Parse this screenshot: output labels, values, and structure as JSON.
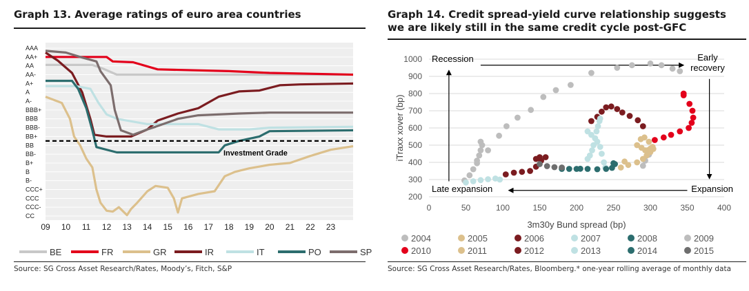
{
  "left": {
    "title": "Graph 13. Average ratings of euro area countries",
    "source": "Source: SG Cross Asset Research/Rates, Moody’s, Fitch, S&P",
    "annotation": "Investment Grade",
    "chart_data": {
      "type": "line",
      "title": "Graph 13. Average ratings of euro area countries",
      "xlabel": "",
      "ylabel": "",
      "x_ticks": [
        "09",
        "10",
        "11",
        "12",
        "13",
        "14",
        "15",
        "16",
        "17",
        "18",
        "19",
        "20",
        "21",
        "22",
        "23"
      ],
      "y_ticks": [
        "AAA",
        "AA+",
        "AA",
        "AA-",
        "A+",
        "A",
        "A-",
        "BBB+",
        "BBB",
        "BBB-",
        "BB+",
        "BB",
        "BB-",
        "B+",
        "B",
        "B-",
        "CCC+",
        "CCC",
        "CCC-",
        "CC"
      ],
      "xlim": [
        2009,
        2024.1
      ],
      "reference_line": {
        "label": "Investment Grade",
        "y": 10.5
      },
      "grid": "horizontal",
      "legend_position": "bottom",
      "series": [
        {
          "name": "BE",
          "color": "#c8c8c8",
          "points": [
            [
              2009,
              1.9
            ],
            [
              2011.3,
              1.9
            ],
            [
              2011.8,
              2.3
            ],
            [
              2012.5,
              3
            ],
            [
              2024.1,
              3
            ]
          ]
        },
        {
          "name": "FR",
          "color": "#e3001b",
          "points": [
            [
              2009,
              1
            ],
            [
              2012.0,
              1
            ],
            [
              2012.3,
              1.5
            ],
            [
              2013.3,
              1.6
            ],
            [
              2014.5,
              2.4
            ],
            [
              2018,
              2.6
            ],
            [
              2020,
              2.8
            ],
            [
              2024.1,
              3
            ]
          ]
        },
        {
          "name": "GR",
          "color": "#dcc08c",
          "points": [
            [
              2009,
              5.5
            ],
            [
              2009.8,
              6.2
            ],
            [
              2010.2,
              8
            ],
            [
              2010.4,
              10
            ],
            [
              2010.7,
              11
            ],
            [
              2011.0,
              12.5
            ],
            [
              2011.3,
              13.5
            ],
            [
              2011.5,
              16
            ],
            [
              2011.7,
              17.5
            ],
            [
              2012.0,
              18.4
            ],
            [
              2012.3,
              18.5
            ],
            [
              2012.6,
              18
            ],
            [
              2013,
              18.9
            ],
            [
              2013.2,
              18.2
            ],
            [
              2013.5,
              17.5
            ],
            [
              2014,
              16.2
            ],
            [
              2014.4,
              15.6
            ],
            [
              2015.0,
              15.8
            ],
            [
              2015.3,
              17
            ],
            [
              2015.5,
              18.6
            ],
            [
              2015.7,
              17
            ],
            [
              2016.5,
              16.5
            ],
            [
              2017.3,
              16.2
            ],
            [
              2017.8,
              14.5
            ],
            [
              2018.3,
              14
            ],
            [
              2019,
              13.6
            ],
            [
              2020,
              13.2
            ],
            [
              2021,
              13
            ],
            [
              2022,
              12.2
            ],
            [
              2023,
              11.5
            ],
            [
              2024.1,
              11.1
            ]
          ]
        },
        {
          "name": "IR",
          "color": "#7b1c20",
          "points": [
            [
              2009,
              0.5
            ],
            [
              2009.6,
              1.4
            ],
            [
              2010.3,
              2.8
            ],
            [
              2010.8,
              5
            ],
            [
              2011.2,
              8
            ],
            [
              2011.4,
              9.8
            ],
            [
              2012,
              10
            ],
            [
              2013.2,
              10
            ],
            [
              2014,
              9.2
            ],
            [
              2014.5,
              8.2
            ],
            [
              2015.5,
              7.4
            ],
            [
              2016.5,
              6.8
            ],
            [
              2017.5,
              5.5
            ],
            [
              2018.5,
              4.9
            ],
            [
              2019.5,
              4.8
            ],
            [
              2020.5,
              4.2
            ],
            [
              2021.5,
              4.1
            ],
            [
              2024.1,
              4
            ]
          ]
        },
        {
          "name": "IT",
          "color": "#bfe1e3",
          "points": [
            [
              2009,
              4.3
            ],
            [
              2010.5,
              4.3
            ],
            [
              2011.2,
              4.6
            ],
            [
              2011.6,
              6.2
            ],
            [
              2012.0,
              7.5
            ],
            [
              2012.5,
              8
            ],
            [
              2014,
              8.6
            ],
            [
              2016.5,
              8.6
            ],
            [
              2017.5,
              9.2
            ],
            [
              2019,
              9.2
            ],
            [
              2020,
              9
            ],
            [
              2024.1,
              8.9
            ]
          ]
        },
        {
          "name": "PO",
          "color": "#2c6d6e",
          "points": [
            [
              2009,
              3.7
            ],
            [
              2010.3,
              3.7
            ],
            [
              2010.6,
              4.6
            ],
            [
              2011.0,
              6.8
            ],
            [
              2011.3,
              9.3
            ],
            [
              2011.5,
              11.2
            ],
            [
              2012.5,
              11.8
            ],
            [
              2017.5,
              11.8
            ],
            [
              2017.8,
              11
            ],
            [
              2018.5,
              10.5
            ],
            [
              2019.5,
              10
            ],
            [
              2020,
              9.4
            ],
            [
              2024.1,
              9.3
            ]
          ]
        },
        {
          "name": "SP",
          "color": "#7c6d6d",
          "points": [
            [
              2009,
              0.3
            ],
            [
              2010.0,
              0.5
            ],
            [
              2010.7,
              1
            ],
            [
              2011.5,
              1.5
            ],
            [
              2011.7,
              2.6
            ],
            [
              2012.2,
              4.2
            ],
            [
              2012.4,
              7
            ],
            [
              2012.7,
              9.3
            ],
            [
              2013.3,
              9.8
            ],
            [
              2014,
              9.2
            ],
            [
              2014.4,
              8.9
            ],
            [
              2015.5,
              8
            ],
            [
              2016.5,
              7.6
            ],
            [
              2018.5,
              7.4
            ],
            [
              2020,
              7.3
            ],
            [
              2024.1,
              7.3
            ]
          ]
        }
      ]
    }
  },
  "right": {
    "title": "Graph 14. Credit spread-yield curve relationship suggests we are likely still in the same credit cycle post-GFC",
    "source": "Source: SG Cross Asset Research/Rates, Bloomberg.* one-year rolling average of monthly data",
    "labels": {
      "recession": "Recession",
      "early_recovery": "Early recovery",
      "late_expansion": "Late expansion",
      "expansion": "Expansion"
    },
    "chart_data": {
      "type": "scatter",
      "xlabel": "3m30y Bund spread (bp)",
      "ylabel": "iTraxx xover (bp)",
      "xlim": [
        0,
        400
      ],
      "ylim": [
        200,
        1000
      ],
      "x_ticks": [
        0,
        50,
        100,
        150,
        200,
        250,
        300,
        350,
        400
      ],
      "y_ticks": [
        200,
        300,
        400,
        500,
        600,
        700,
        800,
        900,
        1000
      ],
      "grid": "horizontal",
      "legend_position": "bottom",
      "series": [
        {
          "name": "2004",
          "color": "#bdbdbd",
          "points": [
            [
              48,
              295
            ],
            [
              55,
              325
            ],
            [
              60,
              360
            ],
            [
              65,
              395
            ],
            [
              68,
              440
            ],
            [
              70,
              470
            ],
            [
              72,
              500
            ],
            [
              70,
              520
            ]
          ]
        },
        {
          "name": "2005",
          "color": "#dcc08c",
          "points": [
            [
              282,
              500
            ],
            [
              288,
              485
            ],
            [
              293,
              470
            ],
            [
              296,
              470
            ],
            [
              300,
              480
            ],
            [
              303,
              490
            ],
            [
              298,
              520
            ],
            [
              292,
              545
            ],
            [
              287,
              535
            ]
          ]
        },
        {
          "name": "2006",
          "color": "#7b1c20",
          "points": [
            [
              104,
              330
            ],
            [
              115,
              340
            ],
            [
              126,
              345
            ],
            [
              137,
              350
            ],
            [
              145,
              375
            ],
            [
              152,
              410
            ],
            [
              158,
              430
            ],
            [
              150,
              430
            ],
            [
              145,
              420
            ]
          ]
        },
        {
          "name": "2007",
          "color": "#bfe1e3",
          "points": [
            [
              50,
              283
            ],
            [
              60,
              290
            ],
            [
              70,
              297
            ],
            [
              80,
              302
            ],
            [
              90,
              306
            ],
            [
              96,
              300
            ],
            [
              215,
              580
            ],
            [
              220,
              560
            ],
            [
              225,
              540
            ],
            [
              228,
              520
            ],
            [
              232,
              490
            ],
            [
              234,
              450
            ],
            [
              237,
              400
            ],
            [
              239,
              370
            ]
          ]
        },
        {
          "name": "2008",
          "color": "#2c6d6e",
          "points": [
            [
              205,
              363
            ],
            [
              215,
              362
            ],
            [
              228,
              360
            ],
            [
              240,
              362
            ],
            [
              248,
              368
            ],
            [
              252,
              390
            ],
            [
              250,
              395
            ]
          ]
        },
        {
          "name": "2009",
          "color": "#bdbdbd",
          "points": [
            [
              65,
              410
            ],
            [
              80,
              470
            ],
            [
              95,
              555
            ],
            [
              105,
              610
            ],
            [
              120,
              660
            ],
            [
              138,
              705
            ],
            [
              155,
              780
            ],
            [
              172,
              820
            ],
            [
              192,
              850
            ],
            [
              220,
              920
            ],
            [
              255,
              950
            ],
            [
              275,
              965
            ],
            [
              300,
              975
            ],
            [
              315,
              965
            ],
            [
              330,
              945
            ],
            [
              340,
              930
            ],
            [
              290,
              380
            ],
            [
              293,
              410
            ],
            [
              298,
              445
            ]
          ]
        },
        {
          "name": "2010",
          "color": "#e3001b",
          "points": [
            [
              306,
              530
            ],
            [
              318,
              545
            ],
            [
              328,
              560
            ],
            [
              340,
              580
            ],
            [
              352,
              600
            ],
            [
              356,
              630
            ],
            [
              358,
              660
            ],
            [
              357,
              700
            ],
            [
              353,
              740
            ],
            [
              345,
              790
            ],
            [
              345,
              800
            ]
          ]
        },
        {
          "name": "2011",
          "color": "#dcc08c",
          "points": [
            [
              260,
              370
            ],
            [
              270,
              385
            ],
            [
              282,
              400
            ],
            [
              290,
              420
            ],
            [
              295,
              440
            ],
            [
              300,
              460
            ],
            [
              304,
              478
            ],
            [
              265,
              405
            ]
          ]
        },
        {
          "name": "2012",
          "color": "#7b1c20",
          "points": [
            [
              220,
              640
            ],
            [
              228,
              665
            ],
            [
              234,
              695
            ],
            [
              240,
              720
            ],
            [
              247,
              725
            ],
            [
              255,
              710
            ],
            [
              262,
              690
            ],
            [
              272,
              670
            ],
            [
              283,
              645
            ],
            [
              290,
              610
            ]
          ]
        },
        {
          "name": "2013",
          "color": "#bfe1e3",
          "points": [
            [
              215,
              420
            ],
            [
              218,
              440
            ],
            [
              221,
              470
            ],
            [
              223,
              500
            ],
            [
              225,
              540
            ],
            [
              227,
              580
            ],
            [
              229,
              610
            ],
            [
              231,
              640
            ],
            [
              232,
              655
            ]
          ]
        },
        {
          "name": "2014",
          "color": "#2c6d6e",
          "points": [
            [
              180,
              362
            ],
            [
              190,
              362
            ],
            [
              200,
              362
            ]
          ]
        },
        {
          "name": "2015",
          "color": "#6e6e6e",
          "points": [
            [
              150,
              390
            ],
            [
              160,
              378
            ],
            [
              170,
              372
            ],
            [
              180,
              370
            ]
          ]
        }
      ]
    }
  }
}
